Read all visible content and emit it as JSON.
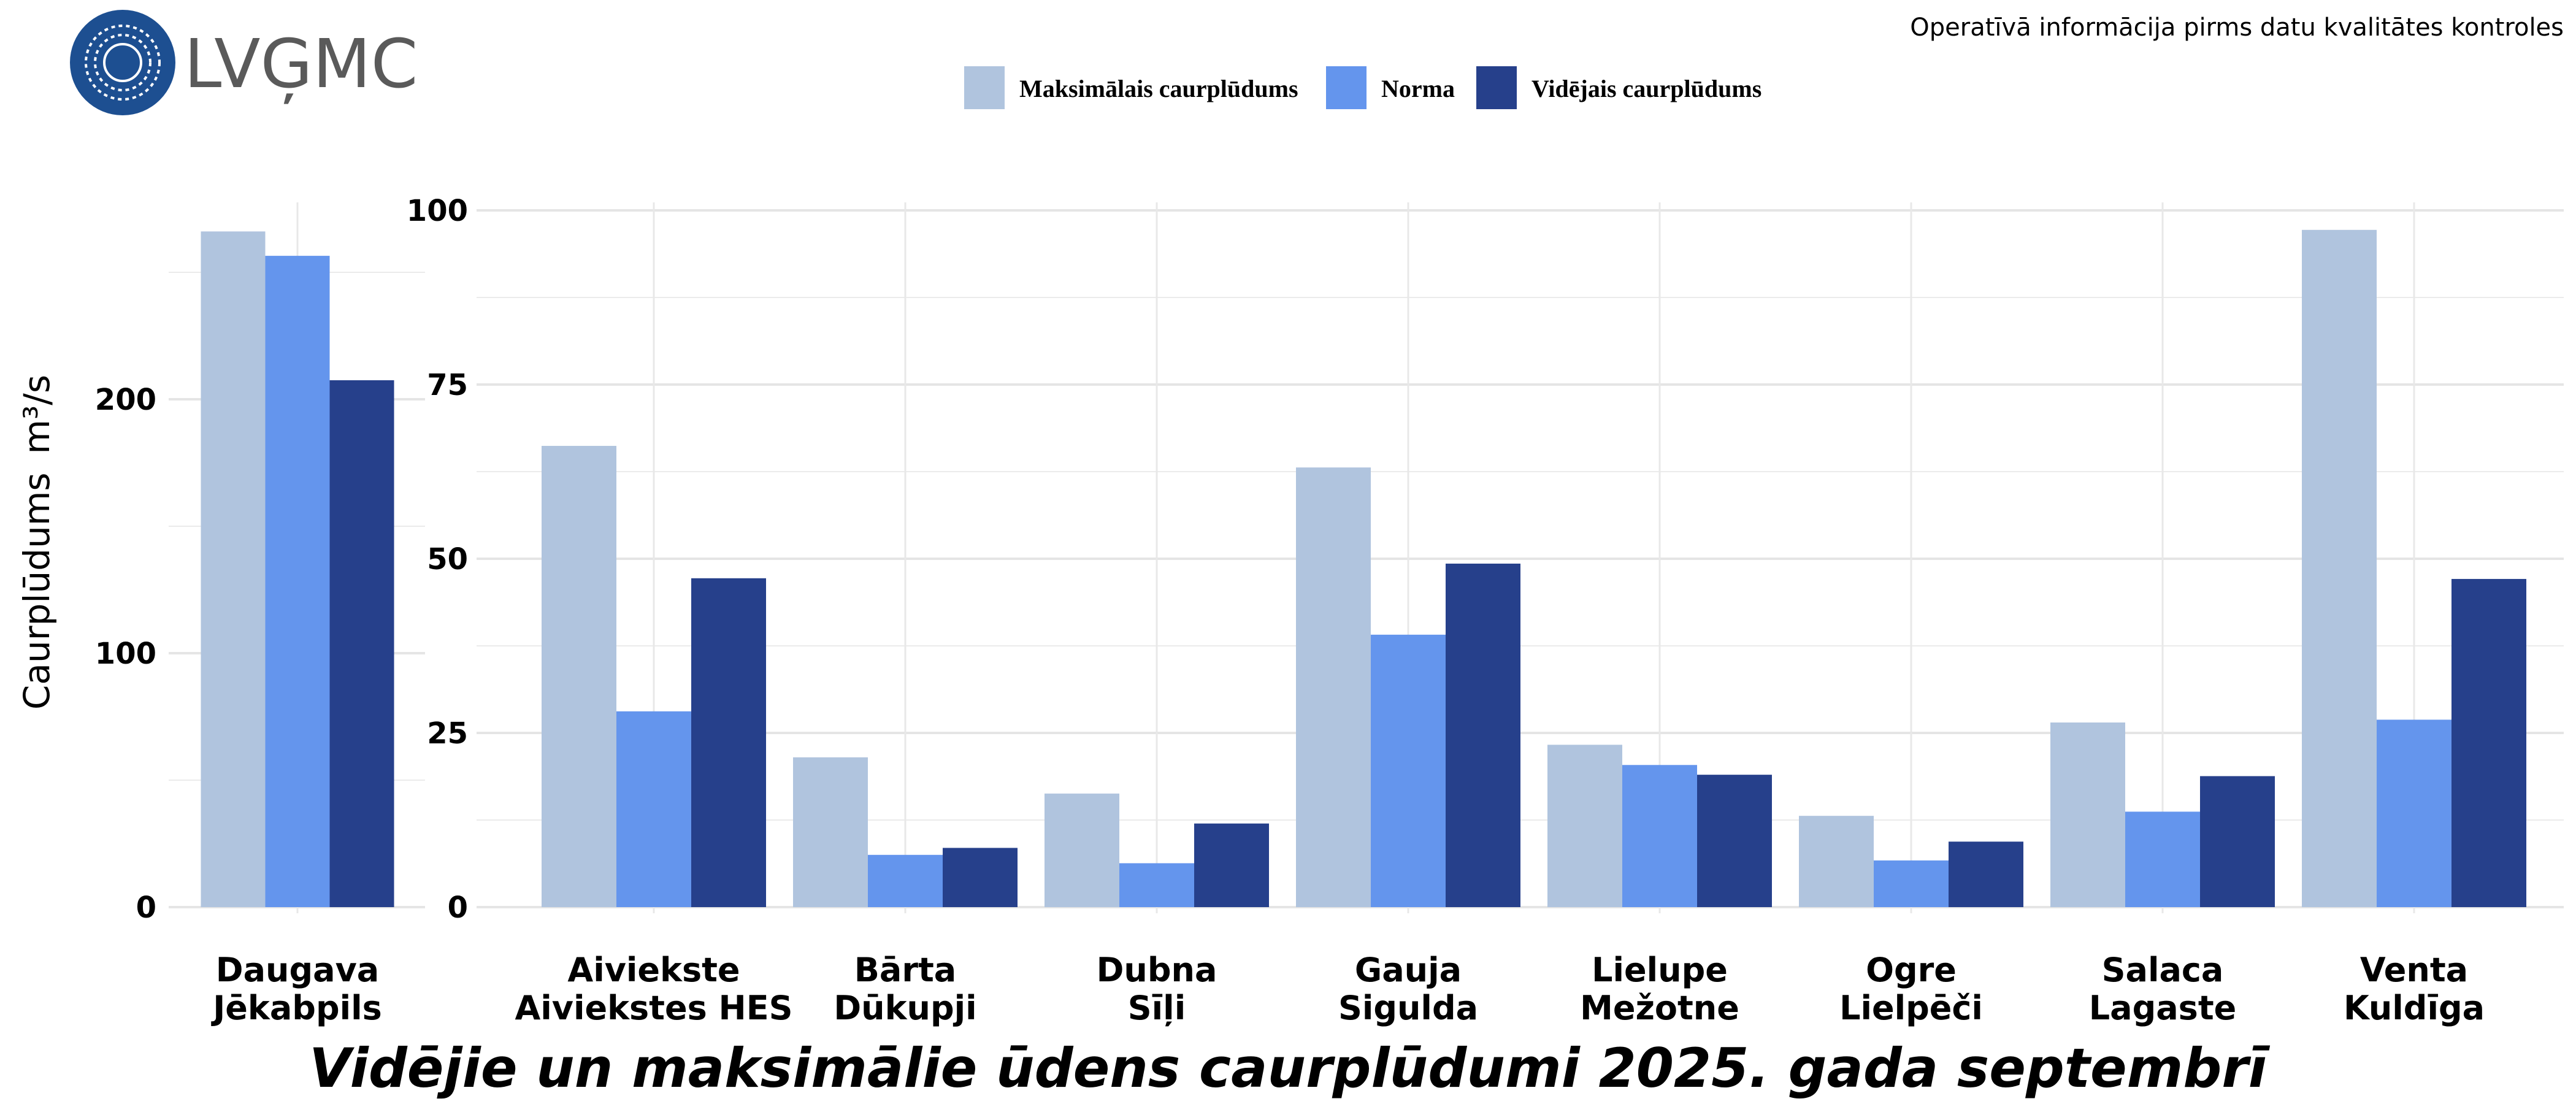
{
  "header": {
    "logo_text": "LVĢMC",
    "note": "Operatīvā informācija pirms datu kvalitātes kontroles"
  },
  "chart_data": {
    "type": "bar",
    "title": "Vidējie un maksimālie ūdens caurplūdumi 2025. gada septembrī",
    "ylabel": "Caurplūdums",
    "ylabel_unit": "m³/s",
    "legend_position": "top",
    "grid": true,
    "colors": {
      "max": "#b0c4de",
      "norm": "#6495ed",
      "mean": "#26408b"
    },
    "series_names": [
      "Maksimālais caurplūdums",
      "Norma",
      "Vidējais caurplūdums"
    ],
    "panels": [
      {
        "ylim": [
          0,
          270
        ],
        "yticks": [
          "0",
          "100",
          "200"
        ],
        "categories": [
          [
            "Daugava",
            "Jēkabpils"
          ]
        ],
        "series": [
          {
            "name": "Maksimālais caurplūdums",
            "values": [
              266.1
            ]
          },
          {
            "name": "Norma",
            "values": [
              256.5
            ]
          },
          {
            "name": "Vidējais caurplūdums",
            "values": [
              207.5
            ]
          }
        ]
      },
      {
        "ylim": [
          0,
          100
        ],
        "yticks": [
          "0",
          "25",
          "50",
          "75",
          "100"
        ],
        "categories": [
          [
            "Aiviekste",
            "Aiviekstes HES"
          ],
          [
            "Bārta",
            "Dūkupji"
          ],
          [
            "Dubna",
            "Sīļi"
          ],
          [
            "Gauja",
            "Sigulda"
          ],
          [
            "Lielupe",
            "Mežotne"
          ],
          [
            "Ogre",
            "Lielpēči"
          ],
          [
            "Salaca",
            "Lagaste"
          ],
          [
            "Venta",
            "Kuldīga"
          ]
        ],
        "series": [
          {
            "name": "Maksimālais caurplūdums",
            "values": [
              66.2,
              21.5,
              16.3,
              63.1,
              23.3,
              13.1,
              26.5,
              97.2
            ]
          },
          {
            "name": "Norma",
            "values": [
              28.1,
              7.5,
              6.3,
              39.1,
              20.4,
              6.7,
              13.7,
              26.9
            ]
          },
          {
            "name": "Vidējais caurplūdums",
            "values": [
              47.2,
              8.5,
              12.0,
              49.3,
              19.0,
              9.4,
              18.8,
              47.1
            ]
          }
        ]
      }
    ]
  }
}
